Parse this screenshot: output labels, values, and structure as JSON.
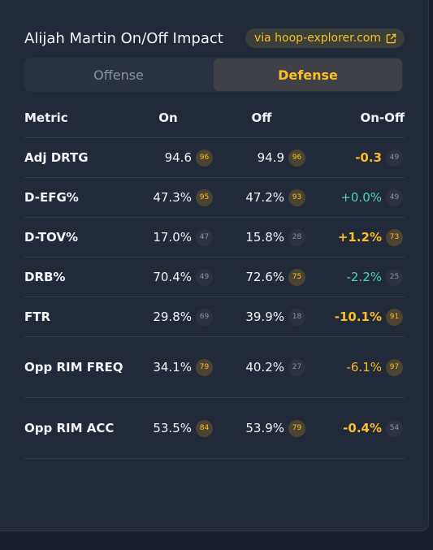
{
  "header": {
    "title": "Alijah Martin On/Off Impact",
    "source_link": "via hoop-explorer.com"
  },
  "tabs": [
    {
      "label": "Offense",
      "active": false
    },
    {
      "label": "Defense",
      "active": true
    }
  ],
  "table": {
    "headers": [
      "Metric",
      "On",
      "Off",
      "On-Off"
    ],
    "rows": [
      {
        "metric": "Adj DRTG",
        "on": "94.6",
        "on_rank": "96",
        "off": "94.9",
        "off_rank": "96",
        "diff": "-0.3",
        "diff_rank": "49"
      },
      {
        "metric": "D-EFG%",
        "on": "47.3%",
        "on_rank": "95",
        "off": "47.2%",
        "off_rank": "93",
        "diff": "+0.0%",
        "diff_rank": "49"
      },
      {
        "metric": "D-TOV%",
        "on": "17.0%",
        "on_rank": "47",
        "off": "15.8%",
        "off_rank": "28",
        "diff": "+1.2%",
        "diff_rank": "73"
      },
      {
        "metric": "DRB%",
        "on": "70.4%",
        "on_rank": "49",
        "off": "72.6%",
        "off_rank": "75",
        "diff": "-2.2%",
        "diff_rank": "25"
      },
      {
        "metric": "FTR",
        "on": "29.8%",
        "on_rank": "69",
        "off": "39.9%",
        "off_rank": "18",
        "diff": "-10.1%",
        "diff_rank": "91"
      },
      {
        "metric": "Opp RIM FREQ",
        "on": "34.1%",
        "on_rank": "79",
        "off": "40.2%",
        "off_rank": "27",
        "diff": "-6.1%",
        "diff_rank": "97"
      },
      {
        "metric": "Opp RIM ACC",
        "on": "53.5%",
        "on_rank": "84",
        "off": "53.9%",
        "off_rank": "79",
        "diff": "-0.4%",
        "diff_rank": "54"
      }
    ]
  },
  "colors": {
    "accent": "#fbbf24",
    "negative_teal": "#4fd1c5",
    "card_bg": "#222938"
  },
  "icons": {
    "external_link": "external-link-icon"
  }
}
